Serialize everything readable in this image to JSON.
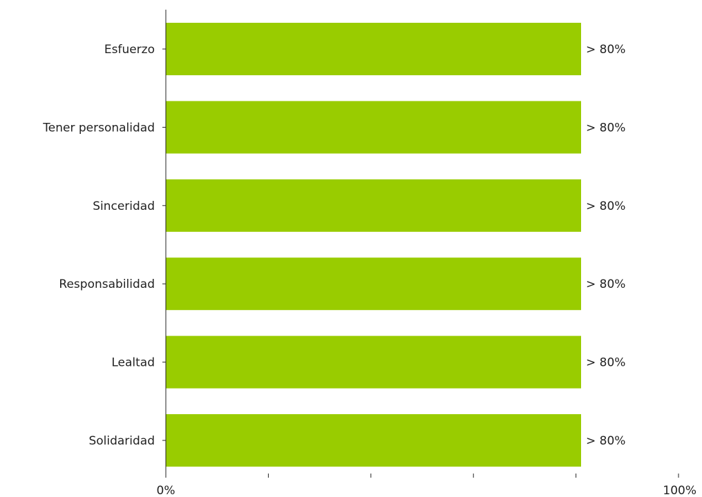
{
  "chart_data": {
    "type": "bar",
    "orientation": "horizontal",
    "categories": [
      "Esfuerzo",
      "Tener personalidad",
      "Sinceridad",
      "Responsabilidad",
      "Lealtad",
      "Solidaridad"
    ],
    "values": [
      81,
      81,
      81,
      81,
      81,
      81
    ],
    "data_labels": [
      "> 80%",
      "> 80%",
      "> 80%",
      "> 80%",
      "> 80%",
      "> 80%"
    ],
    "xlim": [
      0,
      100
    ],
    "x_ticks": [
      0,
      20,
      40,
      60,
      80,
      100
    ],
    "x_tick_labels": {
      "start": "0%",
      "end": "100%"
    },
    "title": "",
    "xlabel": "",
    "ylabel": "",
    "grid": false,
    "legend": "none",
    "bar_color": "#99cc00"
  }
}
